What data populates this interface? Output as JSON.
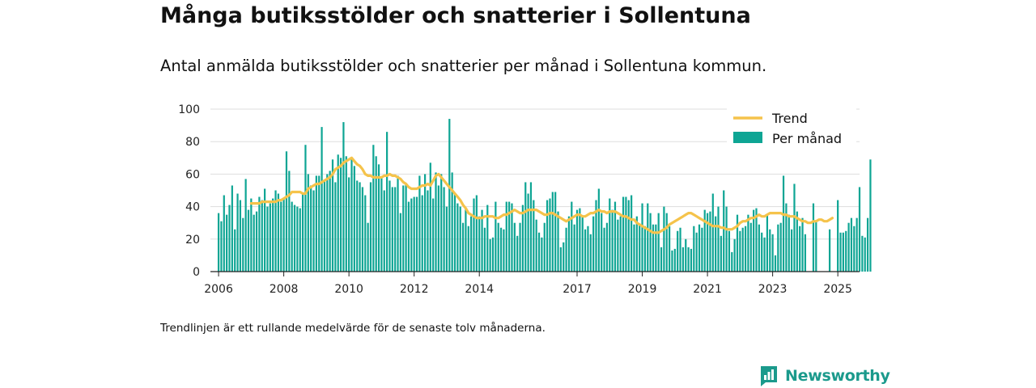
{
  "title": "Många butiksstölder och snatterier i Sollentuna",
  "subtitle": "Antal anmälda butiksstölder och snatterier per månad i Sollentuna kommun.",
  "footnote": "Trendlinjen är ett rullande medelvärde för de senaste tolv månaderna.",
  "brand": "Newsworthy",
  "colors": {
    "bars": "#0ea594",
    "trend": "#f5c34b",
    "brand": "#1b9a8c",
    "grid": "#dddddd"
  },
  "chart_data": {
    "type": "bar",
    "title": "Många butiksstölder och snatterier i Sollentuna",
    "subtitle": "Antal anmälda butiksstölder och snatterier per månad i Sollentuna kommun.",
    "xlabel": "",
    "ylabel": "",
    "ylim": [
      0,
      100
    ],
    "yticks": [
      0,
      20,
      40,
      60,
      80,
      100
    ],
    "xticks": [
      "2006",
      "2008",
      "2010",
      "2012",
      "2014",
      "2017",
      "2019",
      "2021",
      "2023",
      "2025"
    ],
    "xrange": [
      "2005-10",
      "2025-09"
    ],
    "grid": true,
    "legend_position": "top-right",
    "legend": [
      "Trend",
      "Per månad"
    ],
    "series": [
      {
        "name": "Per månad",
        "type": "bar",
        "start": "2006-01",
        "values": [
          36,
          31,
          47,
          35,
          41,
          53,
          26,
          48,
          44,
          33,
          57,
          38,
          45,
          35,
          37,
          46,
          44,
          51,
          40,
          42,
          45,
          50,
          48,
          43,
          45,
          74,
          62,
          43,
          41,
          40,
          39,
          48,
          78,
          60,
          53,
          50,
          59,
          59,
          89,
          56,
          60,
          62,
          69,
          55,
          72,
          70,
          92,
          71,
          58,
          70,
          65,
          56,
          55,
          52,
          47,
          30,
          55,
          78,
          71,
          66,
          58,
          50,
          86,
          56,
          52,
          52,
          59,
          36,
          53,
          54,
          43,
          45,
          46,
          46,
          59,
          47,
          60,
          50,
          67,
          45,
          61,
          53,
          60,
          52,
          40,
          94,
          61,
          48,
          42,
          40,
          30,
          39,
          28,
          34,
          45,
          47,
          34,
          38,
          27,
          41,
          20,
          21,
          43,
          30,
          27,
          26,
          43,
          43,
          42,
          30,
          22,
          30,
          41,
          55,
          48,
          55,
          44,
          32,
          24,
          21,
          30,
          44,
          45,
          49,
          49,
          37,
          15,
          18,
          27,
          34,
          43,
          29,
          38,
          39,
          34,
          26,
          28,
          23,
          34,
          44,
          51,
          36,
          27,
          30,
          45,
          38,
          43,
          32,
          34,
          46,
          46,
          44,
          47,
          29,
          34,
          29,
          42,
          28,
          42,
          36,
          29,
          29,
          36,
          15,
          40,
          36,
          28,
          13,
          14,
          25,
          27,
          15,
          20,
          15,
          14,
          28,
          24,
          29,
          27,
          38,
          36,
          37,
          48,
          34,
          40,
          22,
          50,
          40,
          25,
          12,
          20,
          35,
          25,
          27,
          28,
          35,
          30,
          38,
          39,
          29,
          24,
          21,
          35,
          26,
          23,
          10,
          29,
          30,
          59,
          42,
          35,
          26,
          54,
          37,
          28,
          33,
          23,
          0,
          0,
          42,
          31,
          0,
          0,
          0,
          0,
          26,
          0,
          0,
          44,
          24,
          24,
          25,
          30,
          33,
          28,
          33,
          52,
          22,
          21,
          33,
          69
        ]
      },
      {
        "name": "Trend",
        "type": "line",
        "start": "2007-01",
        "values": [
          42,
          42,
          42,
          42,
          43,
          43,
          43,
          43,
          43,
          43,
          44,
          44,
          45,
          46,
          47,
          49,
          49,
          49,
          49,
          48,
          48,
          51,
          52,
          53,
          54,
          54,
          55,
          56,
          57,
          58,
          60,
          63,
          64,
          65,
          67,
          68,
          69,
          70,
          68,
          66,
          65,
          63,
          60,
          59,
          59,
          58,
          58,
          58,
          58,
          59,
          59,
          60,
          59,
          59,
          58,
          57,
          55,
          54,
          52,
          51,
          51,
          51,
          52,
          53,
          53,
          54,
          53,
          56,
          59,
          60,
          58,
          56,
          54,
          52,
          50,
          48,
          46,
          44,
          41,
          39,
          36,
          35,
          34,
          33,
          33,
          33,
          34,
          34,
          34,
          34,
          33,
          33,
          34,
          35,
          35,
          36,
          37,
          38,
          37,
          36,
          36,
          37,
          38,
          38,
          38,
          38,
          37,
          36,
          35,
          35,
          36,
          36,
          35,
          34,
          33,
          32,
          31,
          32,
          33,
          34,
          35,
          35,
          34,
          34,
          35,
          36,
          36,
          37,
          38,
          37,
          37,
          36,
          37,
          37,
          37,
          36,
          35,
          34,
          34,
          33,
          32,
          32,
          30,
          29,
          28,
          27,
          26,
          25,
          24,
          24,
          24,
          25,
          26,
          27,
          29,
          30,
          31,
          32,
          33,
          34,
          35,
          36,
          36,
          35,
          34,
          33,
          32,
          31,
          30,
          29,
          28,
          28,
          28,
          27,
          27,
          26,
          26,
          26,
          27,
          28,
          30,
          31,
          31,
          32,
          33,
          33,
          34,
          35,
          34,
          34,
          35,
          36,
          36,
          36,
          36,
          36,
          35,
          35,
          34,
          34,
          34,
          33,
          32,
          31,
          31,
          30,
          30,
          31,
          31,
          32,
          32,
          31,
          31,
          32,
          33
        ]
      }
    ]
  }
}
